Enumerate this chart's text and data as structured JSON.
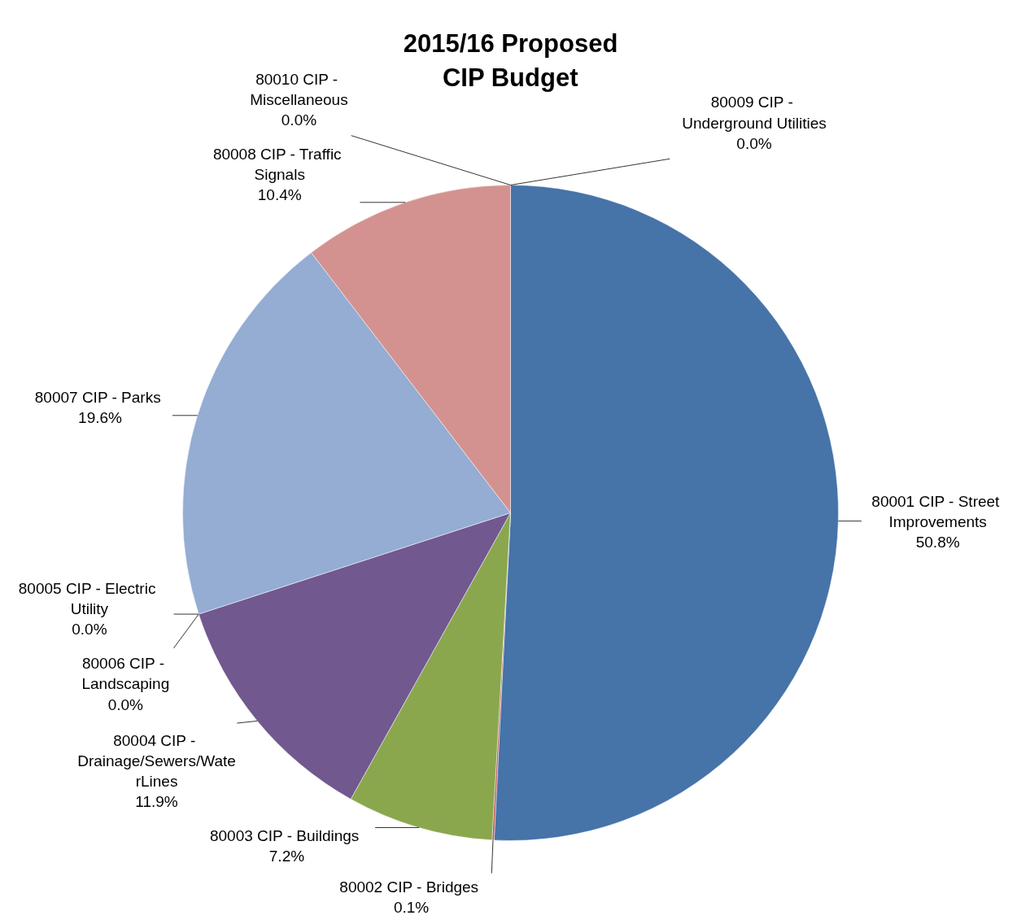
{
  "chart_data": {
    "type": "pie",
    "title": "2015/16 Proposed\nCIP Budget",
    "categories": [
      "80001  CIP - Street\nImprovements",
      "80002  CIP - Bridges",
      "80003  CIP - Buildings",
      "80004  CIP -\nDrainage/Sewers/Wate\nrLines",
      "80005  CIP - Electric\nUtility",
      "80006  CIP -\nLandscaping",
      "80007  CIP - Parks",
      "80008  CIP - Traffic\nSignals",
      "80009  CIP -\nUnderground Utilities",
      "80010  CIP -\nMiscellaneous"
    ],
    "values": [
      50.8,
      0.1,
      7.2,
      11.9,
      0.0,
      0.0,
      19.6,
      10.4,
      0.0,
      0.0
    ],
    "colors": [
      "#4673a8",
      "#b85450",
      "#8aa74e",
      "#71588f",
      "#4298ae",
      "#da8137",
      "#95acd3",
      "#d39290",
      "#a4b9d9",
      "#b8d08c"
    ],
    "value_labels": [
      "50.8%",
      "0.1%",
      "7.2%",
      "11.9%",
      "0.0%",
      "0.0%",
      "19.6%",
      "10.4%",
      "0.0%",
      "0.0%"
    ]
  }
}
